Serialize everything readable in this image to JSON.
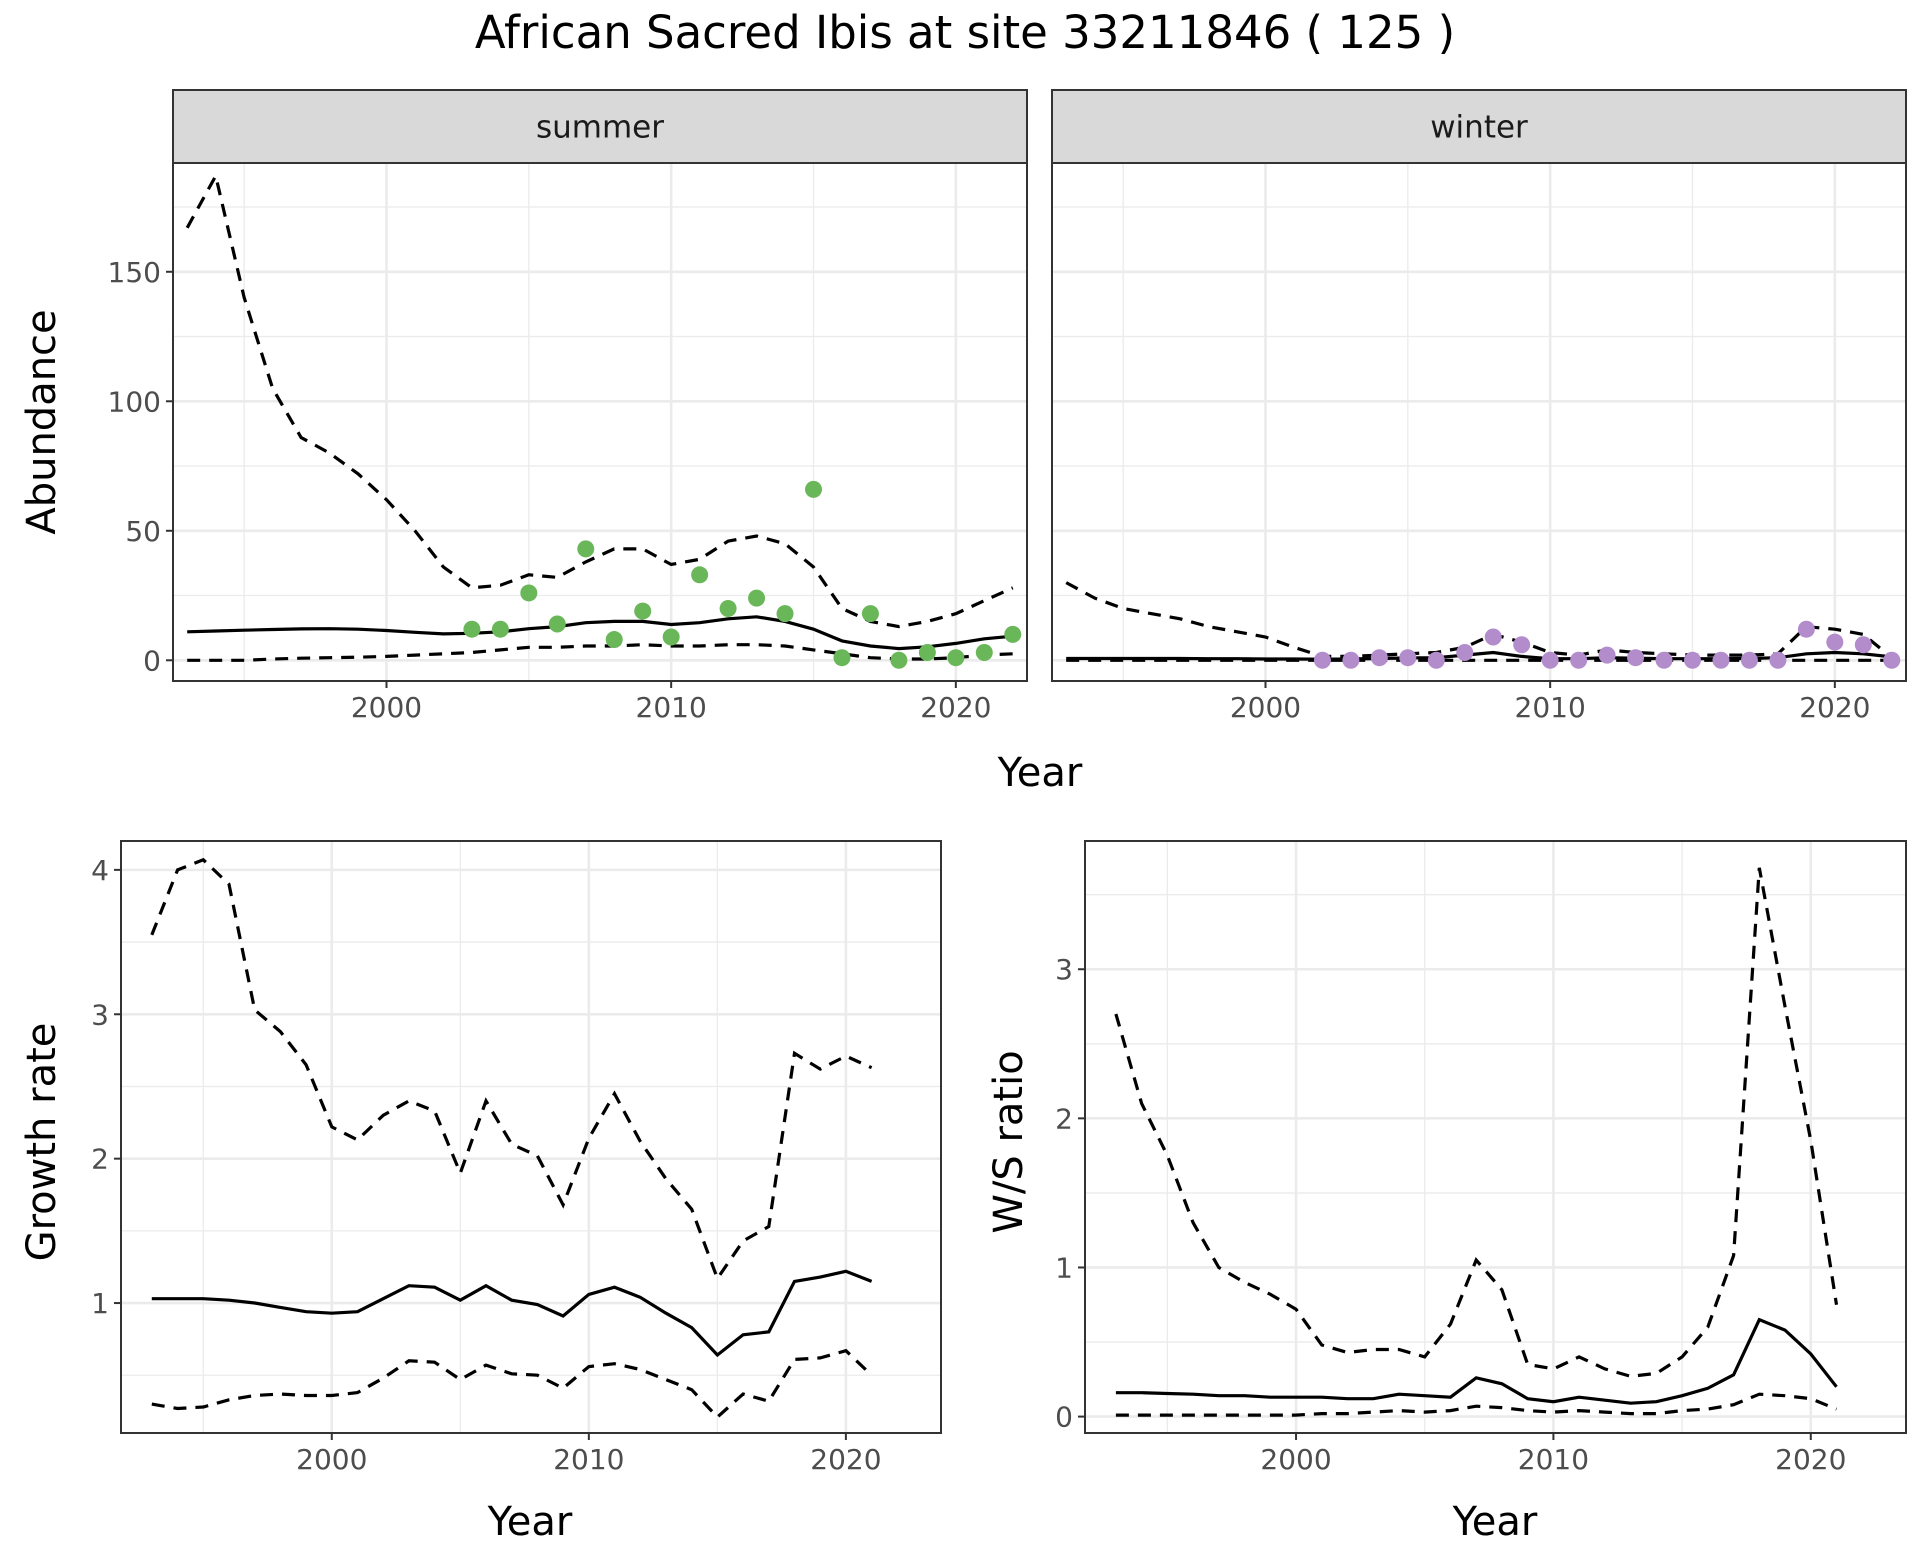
{
  "title": "African Sacred Ibis at site 33211846 ( 125 )",
  "colors": {
    "summer_points": "#6ab759",
    "winter_points": "#b38ccc",
    "lines": "#000000"
  },
  "chart_data": [
    {
      "id": "abundance",
      "type": "line",
      "facets": [
        "summer",
        "winter"
      ],
      "xlabel": "Year",
      "ylabel": "Abundance",
      "xlim": [
        1992.5,
        2022.5
      ],
      "ylim": [
        -8,
        192
      ],
      "xticks": [
        2000,
        2010,
        2020
      ],
      "yticks": [
        0,
        50,
        100,
        150
      ],
      "grid": true,
      "panels": [
        {
          "strip": "summer",
          "years": [
            1993,
            1994,
            1995,
            1996,
            1997,
            1998,
            1999,
            2000,
            2001,
            2002,
            2003,
            2004,
            2005,
            2006,
            2007,
            2008,
            2009,
            2010,
            2011,
            2012,
            2013,
            2014,
            2015,
            2016,
            2017,
            2018,
            2019,
            2020,
            2021,
            2022
          ],
          "estimate": [
            11,
            11.3,
            11.6,
            11.9,
            12.1,
            12.2,
            12,
            11.5,
            10.8,
            10.2,
            10.4,
            11,
            12.2,
            13,
            14.5,
            15,
            15,
            13.8,
            14.5,
            16,
            16.8,
            15,
            12,
            7.5,
            5.5,
            4.5,
            5.2,
            6.5,
            8.3,
            9.3
          ],
          "lower": [
            0,
            0,
            0,
            0.5,
            0.8,
            1,
            1.2,
            1.5,
            2,
            2.5,
            3,
            4,
            5,
            5,
            5.5,
            5.5,
            6,
            5.5,
            5.5,
            6,
            6,
            5.5,
            4,
            2.5,
            1,
            0.5,
            0.5,
            1,
            2,
            2.5
          ],
          "upper": [
            167,
            187,
            140,
            105,
            86,
            80,
            72,
            62,
            50,
            36,
            28,
            29,
            33,
            32,
            38,
            43,
            43,
            37,
            39,
            46,
            48,
            45,
            36,
            20,
            15,
            13,
            15,
            18,
            23,
            28
          ],
          "points": {
            "years": [
              2003,
              2004,
              2005,
              2006,
              2007,
              2008,
              2009,
              2010,
              2011,
              2012,
              2013,
              2014,
              2015,
              2016,
              2017,
              2018,
              2019,
              2020,
              2021,
              2022
            ],
            "values": [
              12,
              12,
              26,
              14,
              43,
              8,
              19,
              9,
              33,
              20,
              24,
              18,
              66,
              1,
              18,
              0,
              3,
              1,
              3,
              10
            ]
          }
        },
        {
          "strip": "winter",
          "years": [
            1993,
            1994,
            1995,
            1996,
            1997,
            1998,
            1999,
            2000,
            2001,
            2002,
            2003,
            2004,
            2005,
            2006,
            2007,
            2008,
            2009,
            2010,
            2011,
            2012,
            2013,
            2014,
            2015,
            2016,
            2017,
            2018,
            2019,
            2020,
            2021,
            2022
          ],
          "estimate": [
            0.7,
            0.7,
            0.7,
            0.7,
            0.7,
            0.6,
            0.6,
            0.5,
            0.5,
            0.4,
            0.5,
            0.7,
            0.9,
            1,
            2,
            3,
            1.5,
            0.6,
            0.6,
            1,
            0.8,
            0.6,
            0.6,
            0.6,
            0.7,
            1,
            2.5,
            3,
            2.5,
            1.3
          ],
          "lower": [
            0,
            0,
            0,
            0,
            0,
            0,
            0,
            0,
            0,
            0,
            0,
            0,
            0,
            0,
            0,
            0,
            0,
            0,
            0,
            0,
            0,
            0,
            0,
            0,
            0,
            0,
            0,
            0,
            0,
            0
          ],
          "upper": [
            30,
            24,
            20,
            18,
            16,
            13,
            11,
            9,
            5,
            1.5,
            1.5,
            2,
            2.5,
            3,
            5,
            10,
            7,
            3,
            2,
            4,
            3,
            2.5,
            2,
            2,
            2,
            2.5,
            13,
            12,
            10,
            1
          ],
          "points": {
            "years": [
              2002,
              2003,
              2004,
              2005,
              2006,
              2007,
              2008,
              2009,
              2010,
              2011,
              2012,
              2013,
              2014,
              2015,
              2016,
              2017,
              2018,
              2019,
              2020,
              2021,
              2022
            ],
            "values": [
              0,
              0,
              1,
              1,
              0,
              3,
              9,
              6,
              0,
              0,
              2,
              1,
              0,
              0,
              0,
              0,
              0,
              12,
              7,
              6,
              0
            ]
          }
        }
      ]
    },
    {
      "id": "growth",
      "type": "line",
      "xlabel": "Year",
      "ylabel": "Growth rate",
      "xlim": [
        1991.8,
        2023.7
      ],
      "ylim": [
        0.1,
        4.2
      ],
      "xticks": [
        2000,
        2010,
        2020
      ],
      "yticks": [
        1,
        2,
        3,
        4
      ],
      "grid": true,
      "years": [
        1993,
        1994,
        1995,
        1996,
        1997,
        1998,
        1999,
        2000,
        2001,
        2002,
        2003,
        2004,
        2005,
        2006,
        2007,
        2008,
        2009,
        2010,
        2011,
        2012,
        2013,
        2014,
        2015,
        2016,
        2017,
        2018,
        2019,
        2020,
        2021
      ],
      "estimate": [
        1.03,
        1.03,
        1.03,
        1.02,
        1.0,
        0.97,
        0.94,
        0.93,
        0.94,
        1.03,
        1.12,
        1.11,
        1.02,
        1.12,
        1.02,
        0.99,
        0.91,
        1.06,
        1.11,
        1.04,
        0.93,
        0.83,
        0.64,
        0.78,
        0.8,
        1.15,
        1.18,
        1.22,
        1.15
      ],
      "lower": [
        0.3,
        0.27,
        0.28,
        0.33,
        0.36,
        0.37,
        0.36,
        0.36,
        0.38,
        0.48,
        0.6,
        0.59,
        0.47,
        0.57,
        0.51,
        0.5,
        0.41,
        0.56,
        0.58,
        0.54,
        0.47,
        0.4,
        0.21,
        0.37,
        0.32,
        0.61,
        0.62,
        0.67,
        0.5
      ],
      "upper": [
        3.55,
        4.0,
        4.07,
        3.9,
        3.03,
        2.88,
        2.65,
        2.22,
        2.13,
        2.3,
        2.4,
        2.33,
        1.9,
        2.4,
        2.1,
        2.02,
        1.68,
        2.14,
        2.45,
        2.12,
        1.86,
        1.65,
        1.17,
        1.43,
        1.53,
        2.73,
        2.62,
        2.71,
        2.63
      ]
    },
    {
      "id": "ratio",
      "type": "line",
      "xlabel": "Year",
      "ylabel": "W/S ratio",
      "xlim": [
        1991.8,
        2023.7
      ],
      "ylim": [
        -0.11,
        3.86
      ],
      "xticks": [
        2000,
        2010,
        2020
      ],
      "yticks": [
        0,
        1,
        2,
        3
      ],
      "grid": true,
      "years": [
        1993,
        1994,
        1995,
        1996,
        1997,
        1998,
        1999,
        2000,
        2001,
        2002,
        2003,
        2004,
        2005,
        2006,
        2007,
        2008,
        2009,
        2010,
        2011,
        2012,
        2013,
        2014,
        2015,
        2016,
        2017,
        2018,
        2019,
        2020,
        2021
      ],
      "estimate": [
        0.16,
        0.16,
        0.155,
        0.15,
        0.14,
        0.14,
        0.13,
        0.13,
        0.13,
        0.12,
        0.12,
        0.15,
        0.14,
        0.13,
        0.26,
        0.22,
        0.12,
        0.1,
        0.13,
        0.11,
        0.09,
        0.1,
        0.14,
        0.19,
        0.28,
        0.65,
        0.58,
        0.42,
        0.2
      ],
      "lower": [
        0.01,
        0.01,
        0.01,
        0.01,
        0.01,
        0.01,
        0.01,
        0.01,
        0.02,
        0.02,
        0.03,
        0.04,
        0.03,
        0.04,
        0.07,
        0.06,
        0.04,
        0.03,
        0.04,
        0.03,
        0.02,
        0.02,
        0.04,
        0.05,
        0.08,
        0.15,
        0.14,
        0.12,
        0.05
      ],
      "upper": [
        2.7,
        2.1,
        1.75,
        1.3,
        1.0,
        0.9,
        0.82,
        0.72,
        0.48,
        0.43,
        0.45,
        0.45,
        0.4,
        0.62,
        1.05,
        0.85,
        0.35,
        0.32,
        0.4,
        0.32,
        0.27,
        0.29,
        0.4,
        0.6,
        1.08,
        3.68,
        2.75,
        1.85,
        0.75
      ]
    }
  ]
}
